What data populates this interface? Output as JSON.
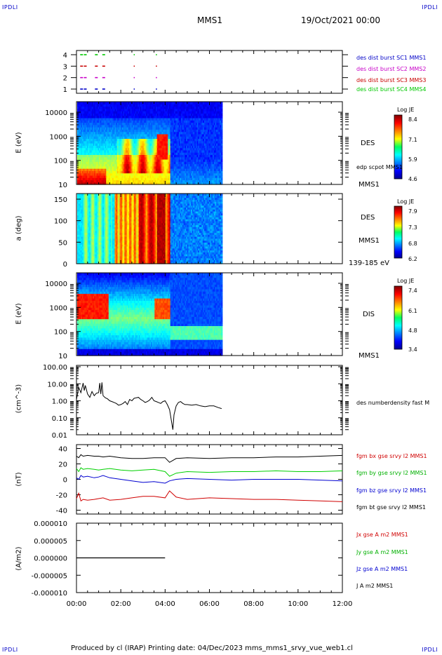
{
  "header": {
    "corner_tl": "IPDLI",
    "corner_tr": "IPDLI",
    "corner_bl": "IPDLI",
    "corner_br": "IPDLI",
    "spacecraft": "MMS1",
    "datetime": "19/Oct/2021 00:00"
  },
  "footer": {
    "text": "Produced by cl (IRAP)   Printing date: 04/Dec/2023   mms_mms1_srvy_vue_web1.cl"
  },
  "colors": {
    "mms1": "#0000c8",
    "mms2": "#c800c8",
    "mms3": "#c80000",
    "mms4": "#00c800",
    "bx": "#d00000",
    "by": "#00d000",
    "bz": "#0000d0",
    "bt": "#000000"
  },
  "chart_data": [
    {
      "type": "scatter",
      "panel": "burst-availability",
      "yticks": [
        "1",
        "2",
        "3",
        "4"
      ],
      "series": [
        {
          "name": "des dist burst SC1 MMS1",
          "color": "#0000c8",
          "y": 1,
          "x": [
            "00:10",
            "00:20",
            "00:50",
            "01:10",
            "02:35",
            "03:35"
          ]
        },
        {
          "name": "des dist burst SC2 MMS2",
          "color": "#c800c8",
          "y": 2,
          "x": [
            "00:10",
            "00:20",
            "00:50",
            "01:10",
            "02:35",
            "03:35"
          ]
        },
        {
          "name": "des dist burst SC3 MMS3",
          "color": "#c80000",
          "y": 3,
          "x": [
            "00:10",
            "00:20",
            "00:50",
            "01:10",
            "02:35",
            "03:35"
          ]
        },
        {
          "name": "des dist burst SC4 MMS4",
          "color": "#00c800",
          "y": 4,
          "x": [
            "00:10",
            "00:20",
            "00:50",
            "01:10",
            "02:35",
            "03:35"
          ]
        }
      ]
    },
    {
      "type": "heatmap",
      "panel": "des-energy",
      "ylabel": "E (eV)",
      "ytick_labels": [
        "10",
        "100",
        "1000",
        "10000"
      ],
      "scale": "log",
      "right_labels": [
        "DES",
        "edp scpot MMS1",
        "MMS1"
      ],
      "colorbar": {
        "title": "Log JE",
        "ticks": [
          "8.4",
          "7.1",
          "5.9",
          "4.6"
        ]
      },
      "data_end": "06:35"
    },
    {
      "type": "heatmap",
      "panel": "des-pitch",
      "ylabel": "a (deg)",
      "ytick_labels": [
        "0",
        "50",
        "100",
        "150"
      ],
      "right_labels": [
        "DES",
        "MMS1",
        "139-185 eV"
      ],
      "colorbar": {
        "title": "Log JE",
        "ticks": [
          "7.9",
          "7.3",
          "6.8",
          "6.2"
        ]
      },
      "data_end": "06:35"
    },
    {
      "type": "heatmap",
      "panel": "dis-energy",
      "ylabel": "E (eV)",
      "ytick_labels": [
        "10",
        "100",
        "1000",
        "10000"
      ],
      "scale": "log",
      "right_labels": [
        "DIS",
        "MMS1"
      ],
      "colorbar": {
        "title": "Log JE",
        "ticks": [
          "7.4",
          "6.1",
          "4.8",
          "3.4"
        ]
      },
      "data_end": "06:35"
    },
    {
      "type": "line",
      "panel": "density",
      "ylabel": "(cm^-3)",
      "ytick_labels": [
        "0.01",
        "0.10",
        "1.00",
        "10.00",
        "100.00"
      ],
      "scale": "log",
      "series": [
        {
          "name": "des numberdensity fast M",
          "color": "#000000",
          "x": [
            0.0,
            0.1,
            0.2,
            0.3,
            0.35,
            0.4,
            0.5,
            0.6,
            0.7,
            0.8,
            0.9,
            1.0,
            1.05,
            1.1,
            1.15,
            1.2,
            1.3,
            1.4,
            1.5,
            1.6,
            1.7,
            1.8,
            1.9,
            2.0,
            2.1,
            2.2,
            2.3,
            2.4,
            2.5,
            2.6,
            2.7,
            2.8,
            2.9,
            3.0,
            3.1,
            3.2,
            3.3,
            3.4,
            3.5,
            3.6,
            3.7,
            3.8,
            3.9,
            4.0,
            4.1,
            4.2,
            4.3,
            4.35,
            4.4,
            4.5,
            4.6,
            4.7,
            4.8,
            4.9,
            5.0,
            5.2,
            5.4,
            5.6,
            5.8,
            6.0,
            6.2,
            6.4,
            6.55
          ],
          "y": [
            1.2,
            6.0,
            3.0,
            11.0,
            4.0,
            8.0,
            2.5,
            1.6,
            3.5,
            2.0,
            2.8,
            3.0,
            11.0,
            2.5,
            12.0,
            2.0,
            1.5,
            1.3,
            1.0,
            0.9,
            0.8,
            0.7,
            0.55,
            0.6,
            0.7,
            0.9,
            0.6,
            1.2,
            1.0,
            1.4,
            1.5,
            1.6,
            1.2,
            1.0,
            0.8,
            0.9,
            1.1,
            1.6,
            1.0,
            0.9,
            0.8,
            0.7,
            0.9,
            1.0,
            0.6,
            0.3,
            0.05,
            0.02,
            0.15,
            0.5,
            0.8,
            0.9,
            0.7,
            0.6,
            0.6,
            0.55,
            0.6,
            0.5,
            0.45,
            0.5,
            0.5,
            0.4,
            0.35
          ]
        }
      ]
    },
    {
      "type": "line",
      "panel": "magnetic-field",
      "ylabel": "(nT)",
      "ytick_labels": [
        "-40",
        "-20",
        "0",
        "20",
        "40"
      ],
      "ylim": [
        -45,
        45
      ],
      "series": [
        {
          "name": "fgm bx gse srvy l2 MMS1",
          "color": "#d00000",
          "x": [
            0.0,
            0.1,
            0.2,
            0.3,
            0.5,
            0.8,
            1.0,
            1.2,
            1.5,
            2.0,
            2.5,
            3.0,
            3.5,
            4.0,
            4.2,
            4.5,
            5.0,
            6.0,
            7.0,
            8.0,
            9.0,
            10.0,
            11.0,
            12.0
          ],
          "y": [
            -25,
            -18,
            -28,
            -26,
            -27,
            -26,
            -25,
            -24,
            -27,
            -26,
            -24,
            -22,
            -22,
            -24,
            -15,
            -23,
            -26,
            -24,
            -25,
            -26,
            -26,
            -27,
            -28,
            -29
          ]
        },
        {
          "name": "fgm by gse srvy l2 MMS1",
          "color": "#00d000",
          "x": [
            0.0,
            0.1,
            0.2,
            0.3,
            0.5,
            0.8,
            1.0,
            1.2,
            1.5,
            2.0,
            2.5,
            3.0,
            3.5,
            4.0,
            4.2,
            4.5,
            5.0,
            6.0,
            7.0,
            8.0,
            9.0,
            10.0,
            11.0,
            12.0
          ],
          "y": [
            14,
            10,
            15,
            13,
            14,
            13,
            12,
            13,
            14,
            12,
            11,
            12,
            13,
            10,
            4,
            8,
            10,
            9,
            10,
            10,
            11,
            10,
            10,
            11
          ]
        },
        {
          "name": "fgm bz gse srvy l2 MMS1",
          "color": "#0000d0",
          "x": [
            0.0,
            0.1,
            0.2,
            0.3,
            0.5,
            0.8,
            1.0,
            1.2,
            1.5,
            2.0,
            2.5,
            3.0,
            3.5,
            4.0,
            4.2,
            4.5,
            5.0,
            6.0,
            7.0,
            8.0,
            9.0,
            10.0,
            11.0,
            12.0
          ],
          "y": [
            2,
            0,
            5,
            3,
            4,
            2,
            3,
            5,
            2,
            0,
            -2,
            -4,
            -3,
            -5,
            -2,
            0,
            1,
            0,
            -1,
            0,
            0,
            0,
            -1,
            -2
          ]
        },
        {
          "name": "fgm bt gse srvy l2 MMS1",
          "color": "#000000",
          "x": [
            0.0,
            0.1,
            0.2,
            0.3,
            0.5,
            0.8,
            1.0,
            1.2,
            1.5,
            2.0,
            2.5,
            3.0,
            3.5,
            4.0,
            4.2,
            4.5,
            5.0,
            6.0,
            7.0,
            8.0,
            9.0,
            10.0,
            11.0,
            12.0
          ],
          "y": [
            30,
            28,
            32,
            30,
            31,
            30,
            30,
            29,
            30,
            28,
            27,
            27,
            28,
            28,
            22,
            27,
            28,
            27,
            28,
            28,
            29,
            29,
            30,
            31
          ]
        }
      ]
    },
    {
      "type": "line",
      "panel": "current-density",
      "ylabel": "(A/m2)",
      "ytick_labels": [
        "-0.000010",
        "-0.000005",
        "0.000000",
        "0.000005",
        "0.000010"
      ],
      "ylim": [
        -1e-05,
        1e-05
      ],
      "series": [
        {
          "name": "Jx gse A m2 MMS1",
          "color": "#d00000"
        },
        {
          "name": "Jy gse A m2 MMS1",
          "color": "#00d000"
        },
        {
          "name": "Jz gse A m2 MMS1",
          "color": "#0000d0"
        },
        {
          "name": "J A m2 MMS1",
          "color": "#000000",
          "x": [
            0.0,
            4.0
          ],
          "y": [
            0.0,
            0.0
          ]
        }
      ]
    }
  ],
  "xaxis": {
    "tick_labels": [
      "00:00",
      "02:00",
      "04:00",
      "06:00",
      "08:00",
      "10:00",
      "12:00"
    ],
    "range_hours": [
      0,
      12
    ]
  }
}
